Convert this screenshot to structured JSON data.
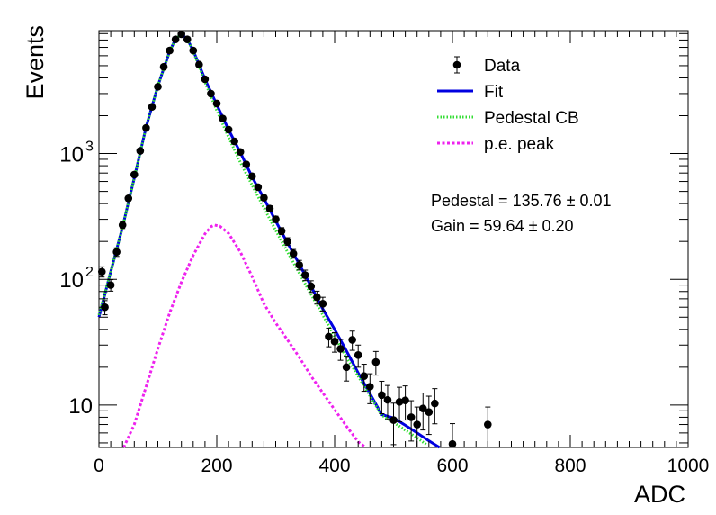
{
  "chart_data": {
    "type": "scatter",
    "x_scale": "linear",
    "y_scale": "log",
    "xlabel": "ADC",
    "ylabel": "Events",
    "xlim": [
      0,
      1000
    ],
    "ylim": [
      4.6,
      9500
    ],
    "x_ticks": [
      {
        "value": 0,
        "label": "0"
      },
      {
        "value": 200,
        "label": "200"
      },
      {
        "value": 400,
        "label": "400"
      },
      {
        "value": 600,
        "label": "600"
      },
      {
        "value": 800,
        "label": "800"
      },
      {
        "value": 1000,
        "label": "1000"
      }
    ],
    "y_ticks": [
      {
        "value": 10,
        "label": "10"
      },
      {
        "value": 100,
        "label": "10",
        "exp": "2"
      },
      {
        "value": 1000,
        "label": "10",
        "exp": "3"
      }
    ],
    "grid": false,
    "legend_position": "top-right",
    "legend": [
      {
        "label": "Data",
        "style": "marker-errorbar",
        "color": "#000000"
      },
      {
        "label": "Fit",
        "style": "solid-line",
        "color": "#0000e0"
      },
      {
        "label": "Pedestal CB",
        "style": "dotted-line",
        "color": "#33dd33"
      },
      {
        "label": "p.e. peak",
        "style": "dotted-line",
        "color": "#ee22ee"
      }
    ],
    "annotations": [
      {
        "text": "Pedestal = 135.76",
        "pm": "0.01"
      },
      {
        "text": "Gain = 59.64",
        "pm": "0.20"
      }
    ],
    "series": [
      {
        "name": "Data",
        "kind": "points-with-errors",
        "color": "#000000",
        "points": [
          [
            5,
            115
          ],
          [
            10,
            60
          ],
          [
            20,
            90
          ],
          [
            30,
            165
          ],
          [
            40,
            270
          ],
          [
            50,
            440
          ],
          [
            60,
            680
          ],
          [
            70,
            1050
          ],
          [
            80,
            1600
          ],
          [
            90,
            2350
          ],
          [
            100,
            3400
          ],
          [
            110,
            4900
          ],
          [
            120,
            6600
          ],
          [
            130,
            8100
          ],
          [
            140,
            8900
          ],
          [
            150,
            8100
          ],
          [
            160,
            6600
          ],
          [
            170,
            5100
          ],
          [
            180,
            3900
          ],
          [
            190,
            3000
          ],
          [
            200,
            2500
          ],
          [
            210,
            1900
          ],
          [
            220,
            1550
          ],
          [
            230,
            1250
          ],
          [
            240,
            1030
          ],
          [
            250,
            820
          ],
          [
            260,
            660
          ],
          [
            270,
            540
          ],
          [
            280,
            445
          ],
          [
            290,
            365
          ],
          [
            300,
            300
          ],
          [
            310,
            242
          ],
          [
            320,
            200
          ],
          [
            330,
            160
          ],
          [
            340,
            130
          ],
          [
            350,
            108
          ],
          [
            360,
            88
          ],
          [
            370,
            72
          ],
          [
            380,
            64
          ],
          [
            390,
            35
          ],
          [
            400,
            32
          ],
          [
            410,
            28
          ],
          [
            420,
            20
          ],
          [
            430,
            33
          ],
          [
            440,
            25
          ],
          [
            450,
            17
          ],
          [
            460,
            14
          ],
          [
            470,
            22
          ],
          [
            480,
            12
          ],
          [
            490,
            11
          ],
          [
            500,
            7.6
          ],
          [
            510,
            10.6
          ],
          [
            520,
            10.9
          ],
          [
            530,
            8
          ],
          [
            540,
            7
          ],
          [
            550,
            9.4
          ],
          [
            560,
            8.8
          ],
          [
            570,
            10.3
          ],
          [
            600,
            4.9
          ],
          [
            660,
            7
          ]
        ]
      },
      {
        "name": "Fit",
        "kind": "curve",
        "color": "#0000e0",
        "points": [
          [
            0,
            50
          ],
          [
            20,
            115
          ],
          [
            40,
            260
          ],
          [
            60,
            640
          ],
          [
            80,
            1620
          ],
          [
            100,
            3450
          ],
          [
            120,
            6500
          ],
          [
            130,
            8150
          ],
          [
            140,
            8950
          ],
          [
            150,
            8100
          ],
          [
            160,
            6600
          ],
          [
            180,
            3900
          ],
          [
            200,
            2450
          ],
          [
            220,
            1550
          ],
          [
            240,
            1020
          ],
          [
            260,
            650
          ],
          [
            280,
            440
          ],
          [
            300,
            290
          ],
          [
            320,
            195
          ],
          [
            340,
            132
          ],
          [
            360,
            88
          ],
          [
            380,
            58
          ],
          [
            400,
            40
          ],
          [
            420,
            27
          ],
          [
            440,
            18
          ],
          [
            460,
            12.3
          ],
          [
            480,
            8.4
          ],
          [
            500,
            7.9
          ],
          [
            520,
            6.9
          ],
          [
            540,
            6.0
          ],
          [
            560,
            5.2
          ],
          [
            578,
            4.6
          ]
        ]
      },
      {
        "name": "Pedestal CB",
        "kind": "curve",
        "color": "#33dd33",
        "points": [
          [
            0,
            52
          ],
          [
            20,
            115
          ],
          [
            40,
            260
          ],
          [
            60,
            640
          ],
          [
            80,
            1620
          ],
          [
            100,
            3450
          ],
          [
            120,
            6500
          ],
          [
            130,
            8150
          ],
          [
            140,
            8950
          ],
          [
            150,
            8050
          ],
          [
            160,
            6500
          ],
          [
            180,
            3700
          ],
          [
            200,
            2200
          ],
          [
            220,
            1350
          ],
          [
            240,
            850
          ],
          [
            260,
            560
          ],
          [
            280,
            370
          ],
          [
            300,
            245
          ],
          [
            320,
            165
          ],
          [
            340,
            112
          ],
          [
            360,
            76
          ],
          [
            380,
            52
          ],
          [
            400,
            35
          ],
          [
            420,
            24
          ],
          [
            440,
            17
          ],
          [
            460,
            11.8
          ],
          [
            480,
            8.3
          ],
          [
            500,
            7.3
          ],
          [
            520,
            6.3
          ],
          [
            540,
            5.5
          ],
          [
            557,
            4.8
          ]
        ]
      },
      {
        "name": "p.e. peak",
        "kind": "curve",
        "color": "#ee22ee",
        "points": [
          [
            42,
            4.6
          ],
          [
            60,
            7
          ],
          [
            80,
            14
          ],
          [
            100,
            28
          ],
          [
            120,
            54
          ],
          [
            140,
            95
          ],
          [
            160,
            155
          ],
          [
            180,
            230
          ],
          [
            190,
            262
          ],
          [
            196,
            270
          ],
          [
            205,
            265
          ],
          [
            220,
            232
          ],
          [
            240,
            165
          ],
          [
            260,
            105
          ],
          [
            280,
            64
          ],
          [
            300,
            45
          ],
          [
            320,
            33
          ],
          [
            340,
            24
          ],
          [
            360,
            17
          ],
          [
            380,
            12.5
          ],
          [
            400,
            9.2
          ],
          [
            420,
            6.8
          ],
          [
            440,
            5.1
          ],
          [
            453,
            4.6
          ]
        ]
      }
    ]
  }
}
